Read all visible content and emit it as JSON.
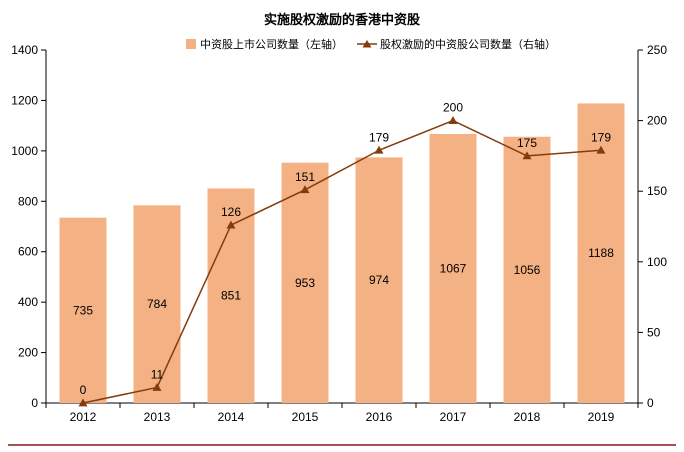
{
  "chart_data": {
    "type": "bar",
    "title": "实施股权激励的香港中资股",
    "categories": [
      "2012",
      "2013",
      "2014",
      "2015",
      "2016",
      "2017",
      "2018",
      "2019"
    ],
    "series": [
      {
        "name": "中资股上市公司数量（左轴）",
        "type": "bar",
        "axis": "left",
        "values": [
          735,
          784,
          851,
          953,
          974,
          1067,
          1056,
          1188
        ],
        "color": "#f4b183"
      },
      {
        "name": "股权激励的中资股公司数量（右轴）",
        "type": "line",
        "axis": "right",
        "values": [
          0,
          11,
          126,
          151,
          179,
          200,
          175,
          179
        ],
        "color": "#843c0c"
      }
    ],
    "yleft": {
      "min": 0,
      "max": 1400,
      "ticks": [
        0,
        200,
        400,
        600,
        800,
        1000,
        1200,
        1400
      ]
    },
    "yright": {
      "min": 0,
      "max": 250,
      "ticks": [
        0,
        50,
        100,
        150,
        200,
        250
      ]
    },
    "legend_position": "top",
    "grid": false
  },
  "footer_line_color": "#8b1a1a"
}
